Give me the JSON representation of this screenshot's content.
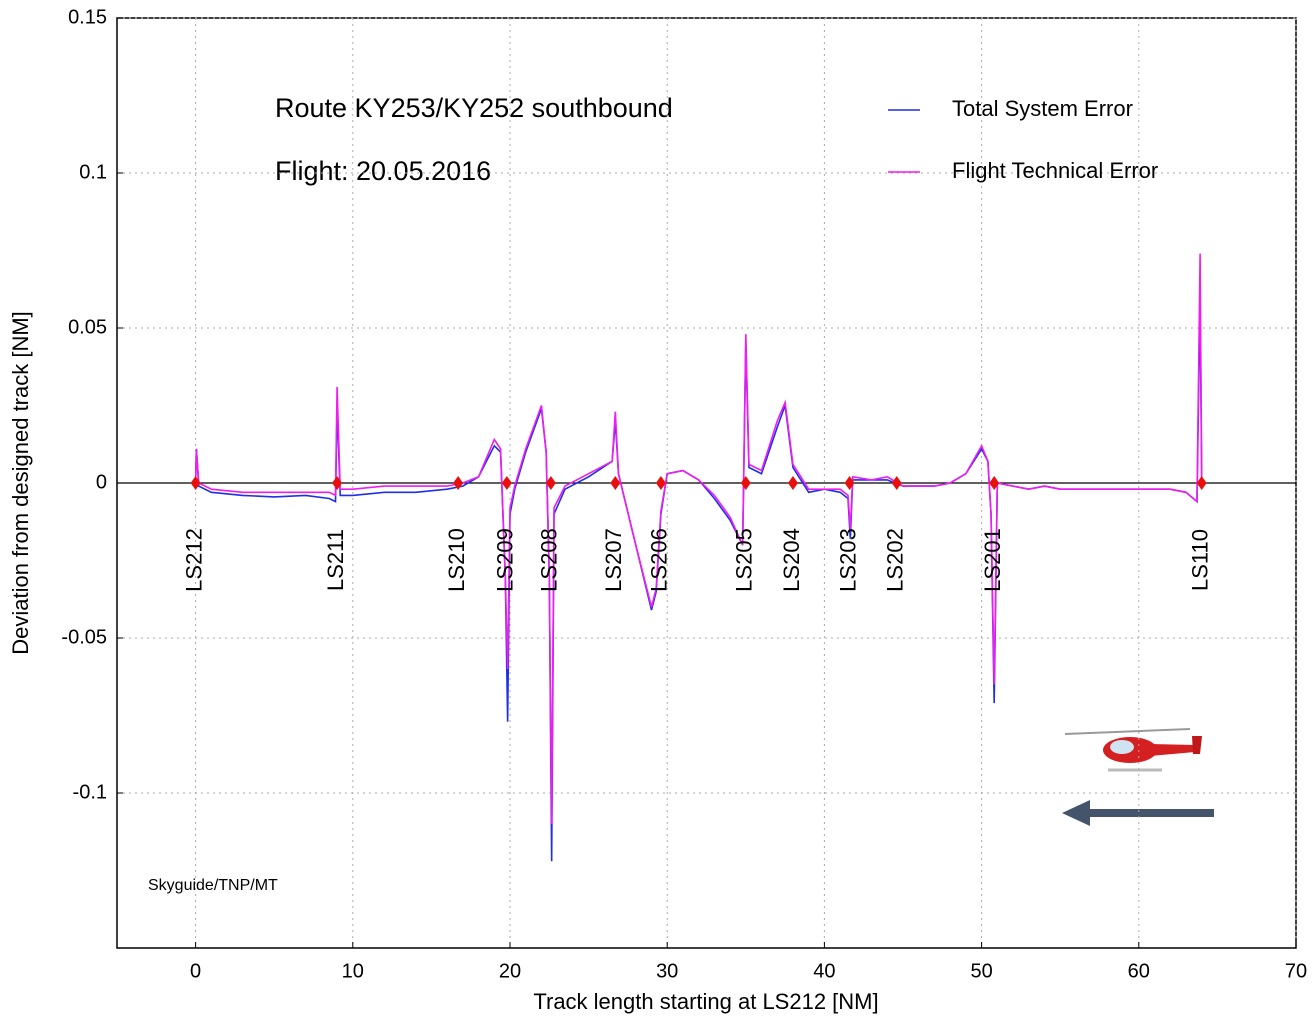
{
  "chart_data": {
    "type": "line",
    "annotations": [
      "Route KY253/KY252 southbound",
      "Flight: 20.05.2016",
      "Skyguide/TNP/MT"
    ],
    "x_label": "Track length starting at LS212 [NM]",
    "y_label": "Deviation from designed track [NM]",
    "xlim": [
      -5,
      70
    ],
    "xticks": [
      0,
      10,
      20,
      30,
      40,
      50,
      60,
      70
    ],
    "ylim": [
      -0.15,
      0.15
    ],
    "yticks": [
      -0.1,
      -0.05,
      0,
      0.05,
      0.1,
      0.15
    ],
    "grid": true,
    "legend": "top-right",
    "x": [
      0,
      0.05,
      0.2,
      1,
      3,
      5,
      7,
      8.5,
      8.9,
      9,
      9.2,
      10,
      12,
      14,
      16,
      17,
      18,
      19,
      19.4,
      19.7,
      19.85,
      20,
      20.3,
      21,
      22,
      22.3,
      22.5,
      22.65,
      22.8,
      23.5,
      25,
      26.5,
      26.7,
      26.9,
      28,
      29,
      29.3,
      29.6,
      30,
      31,
      32,
      33,
      34,
      34.8,
      35,
      35.2,
      36,
      37,
      37.5,
      38,
      39,
      40,
      41,
      41.5,
      41.65,
      41.8,
      43,
      44,
      45,
      47,
      48,
      49,
      50,
      50.4,
      50.6,
      50.8,
      51,
      52,
      53,
      54,
      55,
      57,
      59,
      61,
      62,
      63,
      63.7,
      63.9,
      64
    ],
    "series": [
      {
        "name": "Total System Error",
        "color": "#1f2fe8",
        "values": [
          0,
          0.011,
          -0.001,
          -0.003,
          -0.004,
          -0.0045,
          -0.004,
          -0.005,
          -0.006,
          0.025,
          -0.004,
          -0.004,
          -0.003,
          -0.003,
          -0.002,
          -0.001,
          0.002,
          0.012,
          0.01,
          -0.03,
          -0.077,
          -0.01,
          -0.002,
          0.01,
          0.024,
          0.01,
          -0.03,
          -0.122,
          -0.01,
          -0.002,
          0.002,
          0.007,
          0.02,
          0.003,
          -0.02,
          -0.041,
          -0.035,
          -0.01,
          0.003,
          0.004,
          0.001,
          -0.005,
          -0.012,
          -0.02,
          0.045,
          0.005,
          0.003,
          0.018,
          0.025,
          0.005,
          -0.003,
          -0.002,
          -0.003,
          -0.005,
          -0.018,
          0.001,
          0.001,
          0.001,
          -0.001,
          -0.001,
          0,
          0.003,
          0.011,
          0.007,
          -0.01,
          -0.071,
          0,
          -0.001,
          -0.002,
          -0.001,
          -0.002,
          -0.002,
          -0.002,
          -0.002,
          -0.002,
          -0.003,
          -0.006,
          0.06,
          0.001
        ]
      },
      {
        "name": "Flight Technical Error",
        "color": "#f01cf0",
        "values": [
          0,
          0.011,
          0,
          -0.002,
          -0.003,
          -0.003,
          -0.003,
          -0.003,
          -0.004,
          0.031,
          -0.002,
          -0.002,
          -0.001,
          -0.001,
          -0.001,
          0,
          0.002,
          0.014,
          0.011,
          -0.03,
          -0.06,
          -0.008,
          -0.001,
          0.011,
          0.025,
          0.01,
          -0.03,
          -0.11,
          -0.008,
          -0.001,
          0.003,
          0.007,
          0.023,
          0.003,
          -0.02,
          -0.04,
          -0.034,
          -0.009,
          0.003,
          0.004,
          0.001,
          -0.004,
          -0.011,
          -0.02,
          0.048,
          0.006,
          0.004,
          0.02,
          0.026,
          0.006,
          -0.002,
          -0.002,
          -0.002,
          -0.004,
          -0.015,
          0.002,
          0.001,
          0.002,
          -0.001,
          -0.001,
          0,
          0.003,
          0.012,
          0.007,
          -0.01,
          -0.065,
          0,
          -0.001,
          -0.002,
          -0.001,
          -0.002,
          -0.002,
          -0.002,
          -0.002,
          -0.002,
          -0.003,
          -0.006,
          0.074,
          0.001
        ]
      }
    ],
    "waypoints": {
      "color": "#e8100c",
      "labels": [
        "LS212",
        "LS211",
        "LS210",
        "LS209",
        "LS208",
        "LS207",
        "LS206",
        "LS205",
        "LS204",
        "LS203",
        "LS202",
        "LS201",
        "LS110"
      ],
      "x": [
        0,
        9.0,
        16.7,
        19.8,
        22.6,
        26.7,
        29.6,
        35.0,
        38.0,
        41.6,
        44.6,
        50.8,
        64.0
      ]
    }
  }
}
